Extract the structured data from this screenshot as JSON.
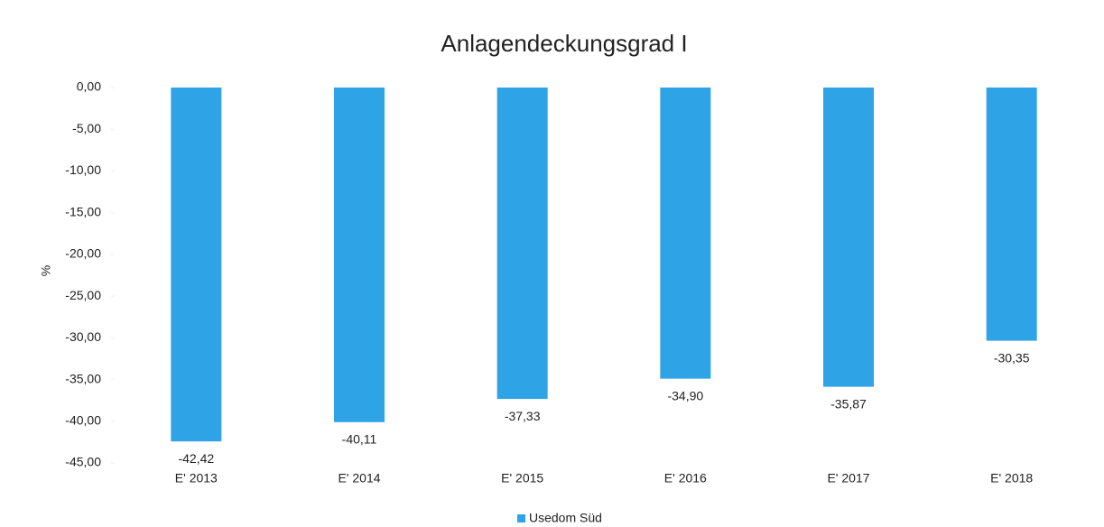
{
  "chart_data": {
    "type": "bar",
    "title": "Anlagendeckungsgrad I",
    "y_label": "%",
    "categories": [
      "E' 2013",
      "E' 2014",
      "E' 2015",
      "E' 2016",
      "E' 2017",
      "E' 2018"
    ],
    "series": [
      {
        "name": "Usedom Süd",
        "color": "#2ea3e6",
        "values": [
          -42.42,
          -40.11,
          -37.33,
          -34.9,
          -35.87,
          -30.35
        ],
        "value_labels": [
          "-42,42",
          "-40,11",
          "-37,33",
          "-34,90",
          "-35,87",
          "-30,35"
        ]
      }
    ],
    "ylim": [
      -45,
      0
    ],
    "yticks": [
      {
        "value": 0,
        "label": "0,00"
      },
      {
        "value": -5,
        "label": "-5,00"
      },
      {
        "value": -10,
        "label": "-10,00"
      },
      {
        "value": -15,
        "label": "-15,00"
      },
      {
        "value": -20,
        "label": "-20,00"
      },
      {
        "value": -25,
        "label": "-25,00"
      },
      {
        "value": -30,
        "label": "-30,00"
      },
      {
        "value": -35,
        "label": "-35,00"
      },
      {
        "value": -40,
        "label": "-40,00"
      },
      {
        "value": -45,
        "label": "-45,00"
      }
    ],
    "legend": "bottom"
  }
}
